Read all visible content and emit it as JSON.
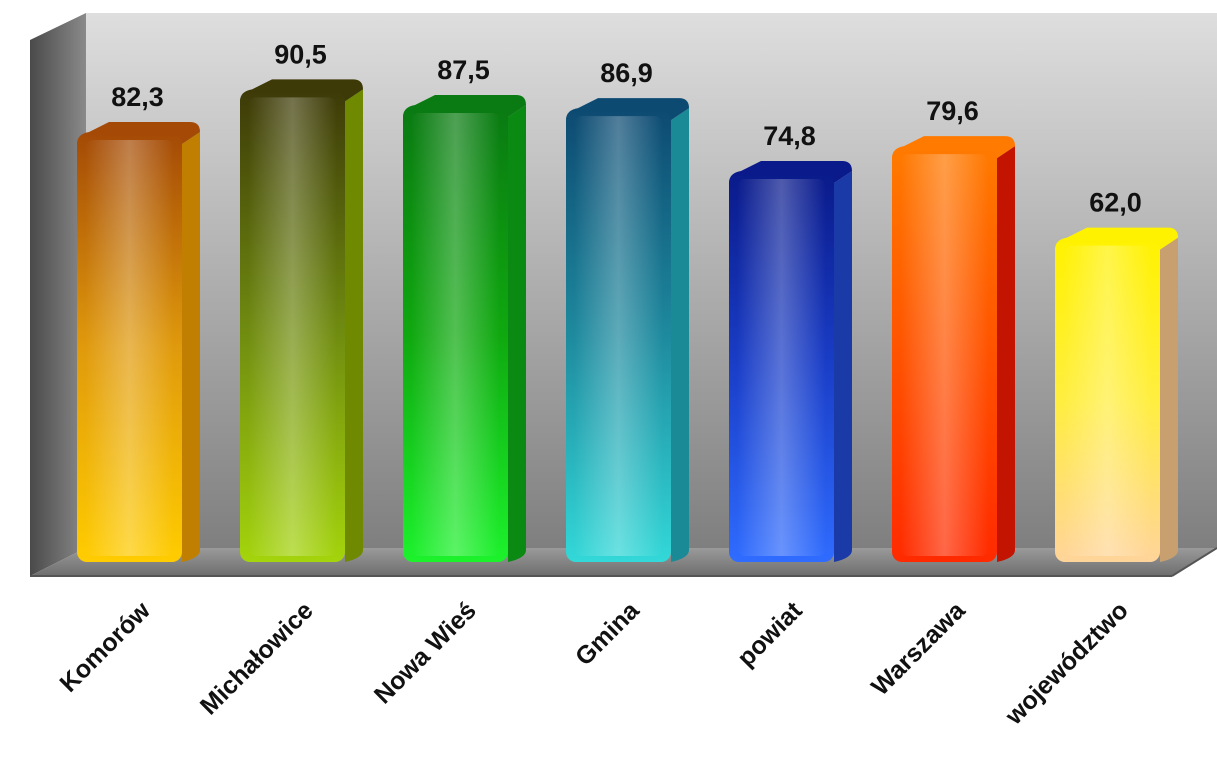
{
  "chart_data": {
    "type": "bar",
    "categories": [
      "Komorów",
      "Michałowice",
      "Nowa Wieś",
      "Gmina",
      "powiat",
      "Warszawa",
      "województwo"
    ],
    "values": [
      82.3,
      90.5,
      87.5,
      86.9,
      74.8,
      79.6,
      62.0
    ],
    "value_labels": [
      "82,3",
      "90,5",
      "87,5",
      "86,9",
      "74,8",
      "79,6",
      "62,0"
    ],
    "ylim": [
      0,
      100
    ],
    "grid": false,
    "legend": "none",
    "bar_colors": [
      {
        "top": "#a44a06",
        "mid": "#e09a0c",
        "bottom": "#ffcc00",
        "side": "#c07f00"
      },
      {
        "top": "#3d3a08",
        "mid": "#6f8a10",
        "bottom": "#a4d40c",
        "side": "#6f8a00"
      },
      {
        "top": "#0a7a12",
        "mid": "#0fa80f",
        "bottom": "#1cf22c",
        "side": "#0a8a12"
      },
      {
        "top": "#0d4a72",
        "mid": "#1e8a9e",
        "bottom": "#33d8d8",
        "side": "#1a8a96"
      },
      {
        "top": "#0a1a8a",
        "mid": "#1a3ec8",
        "bottom": "#2f6cff",
        "side": "#1a3aa8"
      },
      {
        "top": "#ff7a00",
        "mid": "#ff5200",
        "bottom": "#ff2a00",
        "side": "#c21400"
      },
      {
        "top": "#fff200",
        "mid": "#ffee40",
        "bottom": "#ffd49a",
        "side": "#c8a070"
      }
    ]
  }
}
